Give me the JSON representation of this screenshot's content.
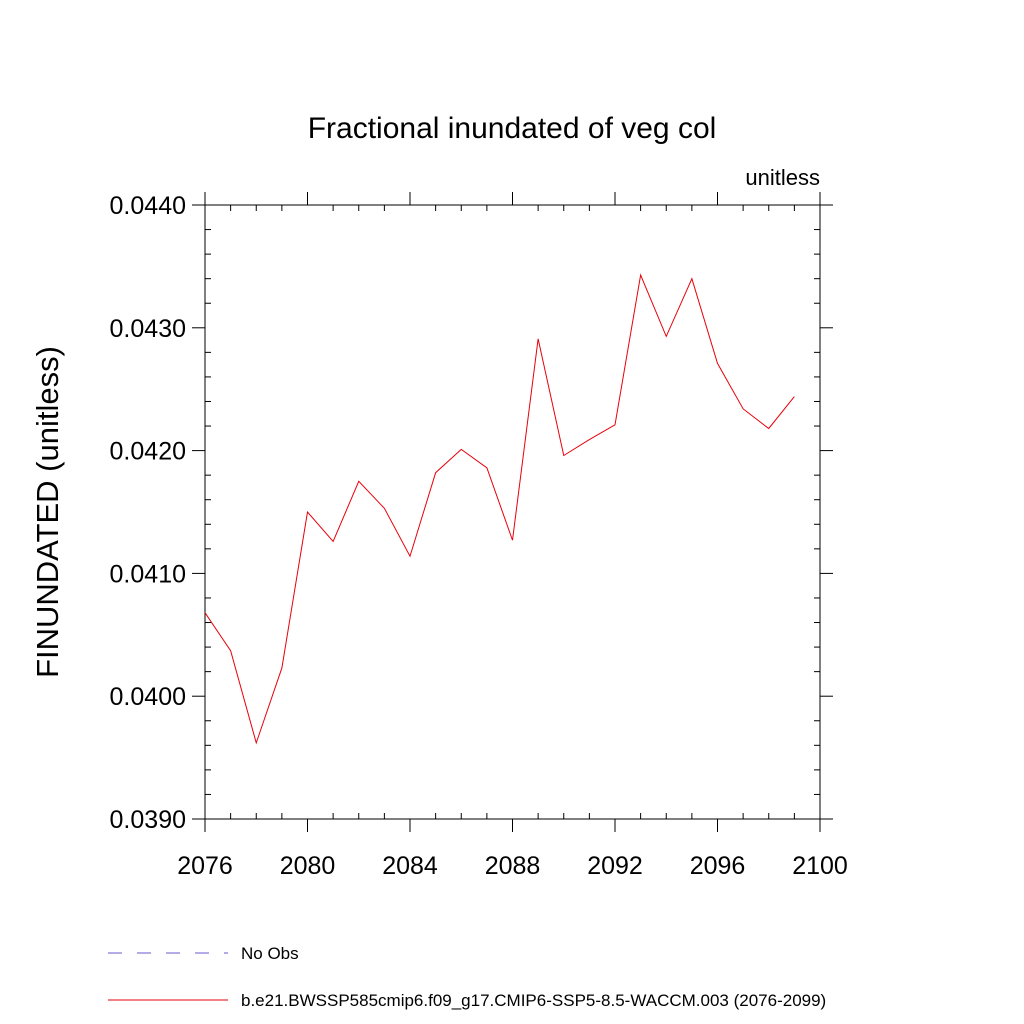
{
  "chart_data": {
    "type": "line",
    "title": "Fractional inundated of veg col",
    "units_label": "unitless",
    "ylabel": "FINUNDATED  (unitless)",
    "xlabel": "",
    "xlim": [
      2076,
      2100
    ],
    "ylim": [
      0.039,
      0.044
    ],
    "x_ticks": [
      2076,
      2080,
      2084,
      2088,
      2092,
      2096,
      2100
    ],
    "x_tick_labels": [
      "2076",
      "2080",
      "2084",
      "2088",
      "2092",
      "2096",
      "2100"
    ],
    "y_ticks": [
      0.039,
      0.04,
      0.041,
      0.042,
      0.043,
      0.044
    ],
    "y_tick_labels": [
      "0.0390",
      "0.0400",
      "0.0410",
      "0.0420",
      "0.0430",
      "0.0440"
    ],
    "grid": false,
    "legend_position": "bottom",
    "series": [
      {
        "name": "No Obs",
        "color": "#6a5acd",
        "dash": true,
        "x": [],
        "values": []
      },
      {
        "name": "b.e21.BWSSP585cmip6.f09_g17.CMIP6-SSP5-8.5-WACCM.003 (2076-2099)",
        "color": "#e8000b",
        "dash": false,
        "x": [
          2076,
          2077,
          2078,
          2079,
          2080,
          2081,
          2082,
          2083,
          2084,
          2085,
          2086,
          2087,
          2088,
          2089,
          2090,
          2091,
          2092,
          2093,
          2094,
          2095,
          2096,
          2097,
          2098,
          2099
        ],
        "values": [
          0.04068,
          0.04037,
          0.03962,
          0.04023,
          0.0415,
          0.04126,
          0.04175,
          0.04153,
          0.04114,
          0.04182,
          0.04201,
          0.04186,
          0.04127,
          0.04291,
          0.04196,
          0.04209,
          0.04221,
          0.04343,
          0.04293,
          0.0434,
          0.04271,
          0.04234,
          0.04218,
          0.04244
        ]
      }
    ]
  }
}
